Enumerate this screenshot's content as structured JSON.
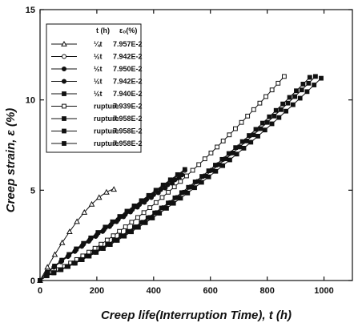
{
  "chart_data": {
    "type": "line",
    "xlabel": "Creep life(Interruption Time),  t (h)",
    "ylabel": "Creep strain,   ε (%)",
    "xlim": [
      0,
      1100
    ],
    "ylim": [
      0,
      15
    ],
    "xticks": [
      0,
      200,
      400,
      600,
      800,
      1000
    ],
    "yticks": [
      0,
      5,
      10,
      15
    ],
    "xtick_labels": [
      "0",
      "200",
      "400",
      "600",
      "800",
      "1000"
    ],
    "ytick_labels": [
      "0",
      "5",
      "10",
      "15"
    ],
    "legend_placement": "top-left",
    "legend_header": {
      "col1": "t (h)",
      "col2": "ε₀(%)"
    },
    "series": [
      {
        "label": "¼t",
        "value": "7.957E-2",
        "marker": "triangle-open",
        "x": [
          0,
          260
        ],
        "y": [
          0,
          5.05
        ],
        "shape": "concave"
      },
      {
        "label": "½t",
        "value": "7.942E-2",
        "marker": "circle-open",
        "x": [
          0,
          510
        ],
        "y": [
          0,
          6.1
        ],
        "shape": "linear"
      },
      {
        "label": "½t",
        "value": "7.950E-2",
        "marker": "circle-filled",
        "x": [
          0,
          500
        ],
        "y": [
          0,
          5.85
        ],
        "shape": "linear"
      },
      {
        "label": "½t",
        "value": "7.942E-2",
        "marker": "circle-filled",
        "x": [
          0,
          490
        ],
        "y": [
          0,
          5.65
        ],
        "shape": "linear"
      },
      {
        "label": "½t",
        "value": "7.940E-2",
        "marker": "square-filled",
        "x": [
          0,
          510
        ],
        "y": [
          0,
          6.15
        ],
        "shape": "linear"
      },
      {
        "label": "rupture",
        "value": "7.939E-2",
        "marker": "square-open",
        "x": [
          0,
          860
        ],
        "y": [
          0,
          11.3
        ],
        "shape": "convex"
      },
      {
        "label": "rupture",
        "value": "7.958E-2",
        "marker": "square-filled",
        "x": [
          0,
          990
        ],
        "y": [
          0,
          11.2
        ],
        "shape": "convex"
      },
      {
        "label": "rupture",
        "value": "7.958E-2",
        "marker": "square-filled",
        "x": [
          0,
          970
        ],
        "y": [
          0,
          11.3
        ],
        "shape": "convex"
      },
      {
        "label": "rupture",
        "value": "7.958E-2",
        "marker": "square-filled",
        "x": [
          0,
          950
        ],
        "y": [
          0,
          11.25
        ],
        "shape": "convex"
      }
    ]
  }
}
